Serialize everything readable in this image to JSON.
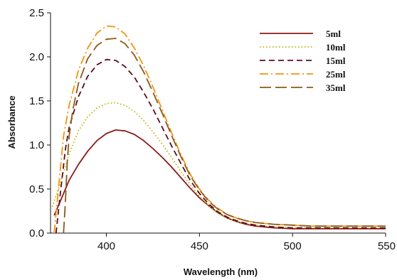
{
  "chart_data": {
    "type": "line",
    "title": "",
    "xlabel": "Wavelength (nm)",
    "ylabel": "Absorbance",
    "xlim": [
      370,
      550
    ],
    "ylim": [
      0,
      2.5
    ],
    "x_ticks": [
      "400",
      "450",
      "500",
      "550"
    ],
    "x_tick_values": [
      400,
      450,
      500,
      550
    ],
    "y_ticks": [
      "0.0",
      "0.5",
      "1.0",
      "1.5",
      "2.0",
      "2.5"
    ],
    "y_tick_values": [
      0,
      0.5,
      1.0,
      1.5,
      2.0,
      2.5
    ],
    "grid": false,
    "legend_position": "top-right",
    "series": [
      {
        "name": "5ml",
        "color": "#8b1a1a",
        "dash": "solid",
        "x": [
          372,
          375,
          380,
          385,
          390,
          395,
          400,
          405,
          410,
          415,
          420,
          425,
          430,
          435,
          440,
          445,
          450,
          455,
          460,
          465,
          470,
          475,
          480,
          490,
          500,
          510,
          520,
          530,
          540,
          550
        ],
        "y": [
          0.2,
          0.35,
          0.6,
          0.78,
          0.93,
          1.05,
          1.13,
          1.17,
          1.16,
          1.12,
          1.05,
          0.96,
          0.86,
          0.75,
          0.63,
          0.51,
          0.4,
          0.31,
          0.23,
          0.17,
          0.13,
          0.1,
          0.08,
          0.06,
          0.05,
          0.05,
          0.05,
          0.05,
          0.05,
          0.05
        ]
      },
      {
        "name": "10ml",
        "color": "#b8b800",
        "dash": "dotted",
        "x": [
          371,
          375,
          380,
          385,
          390,
          395,
          400,
          405,
          410,
          415,
          420,
          425,
          430,
          435,
          440,
          445,
          450,
          455,
          460,
          465,
          470,
          475,
          480,
          490,
          500,
          510,
          520,
          530,
          540,
          550
        ],
        "y": [
          0.3,
          0.55,
          0.9,
          1.16,
          1.32,
          1.42,
          1.47,
          1.48,
          1.45,
          1.38,
          1.28,
          1.15,
          1.01,
          0.86,
          0.7,
          0.55,
          0.42,
          0.31,
          0.23,
          0.17,
          0.13,
          0.11,
          0.09,
          0.07,
          0.06,
          0.06,
          0.06,
          0.06,
          0.06,
          0.06
        ]
      },
      {
        "name": "15ml",
        "color": "#5e0b1f",
        "dash": "dashed",
        "x": [
          373,
          375,
          378,
          380,
          385,
          390,
          395,
          400,
          405,
          410,
          415,
          420,
          425,
          430,
          435,
          440,
          445,
          450,
          455,
          460,
          465,
          470,
          475,
          480,
          490,
          500,
          510,
          520,
          530,
          540,
          550
        ],
        "y": [
          0.0,
          0.4,
          0.95,
          1.2,
          1.55,
          1.78,
          1.91,
          1.97,
          1.96,
          1.89,
          1.77,
          1.6,
          1.41,
          1.2,
          0.99,
          0.79,
          0.6,
          0.45,
          0.33,
          0.24,
          0.18,
          0.14,
          0.11,
          0.09,
          0.07,
          0.06,
          0.06,
          0.06,
          0.06,
          0.06,
          0.06
        ]
      },
      {
        "name": "25ml",
        "color": "#f0950f",
        "dash": "dashdot",
        "x": [
          372,
          374,
          377,
          380,
          385,
          390,
          395,
          400,
          405,
          410,
          415,
          420,
          425,
          430,
          435,
          440,
          445,
          450,
          455,
          460,
          465,
          470,
          475,
          480,
          490,
          500,
          510,
          520,
          530,
          540,
          550
        ],
        "y": [
          0.0,
          0.45,
          1.1,
          1.45,
          1.85,
          2.1,
          2.27,
          2.35,
          2.34,
          2.26,
          2.1,
          1.9,
          1.66,
          1.4,
          1.14,
          0.89,
          0.67,
          0.5,
          0.37,
          0.28,
          0.21,
          0.17,
          0.14,
          0.12,
          0.1,
          0.09,
          0.08,
          0.08,
          0.08,
          0.08,
          0.08
        ]
      },
      {
        "name": "35ml",
        "color": "#8b5a1a",
        "dash": "longdash",
        "x": [
          377,
          378,
          379,
          380,
          382,
          385,
          390,
          395,
          400,
          405,
          410,
          415,
          420,
          425,
          430,
          435,
          440,
          445,
          450,
          455,
          460,
          465,
          470,
          475,
          480,
          490,
          500,
          510,
          520,
          530,
          540,
          550
        ],
        "y": [
          0.0,
          0.35,
          0.8,
          1.1,
          1.4,
          1.7,
          1.98,
          2.13,
          2.2,
          2.21,
          2.15,
          2.02,
          1.83,
          1.6,
          1.36,
          1.11,
          0.87,
          0.65,
          0.49,
          0.36,
          0.27,
          0.21,
          0.17,
          0.14,
          0.12,
          0.1,
          0.09,
          0.08,
          0.08,
          0.08,
          0.08,
          0.08
        ]
      }
    ]
  }
}
